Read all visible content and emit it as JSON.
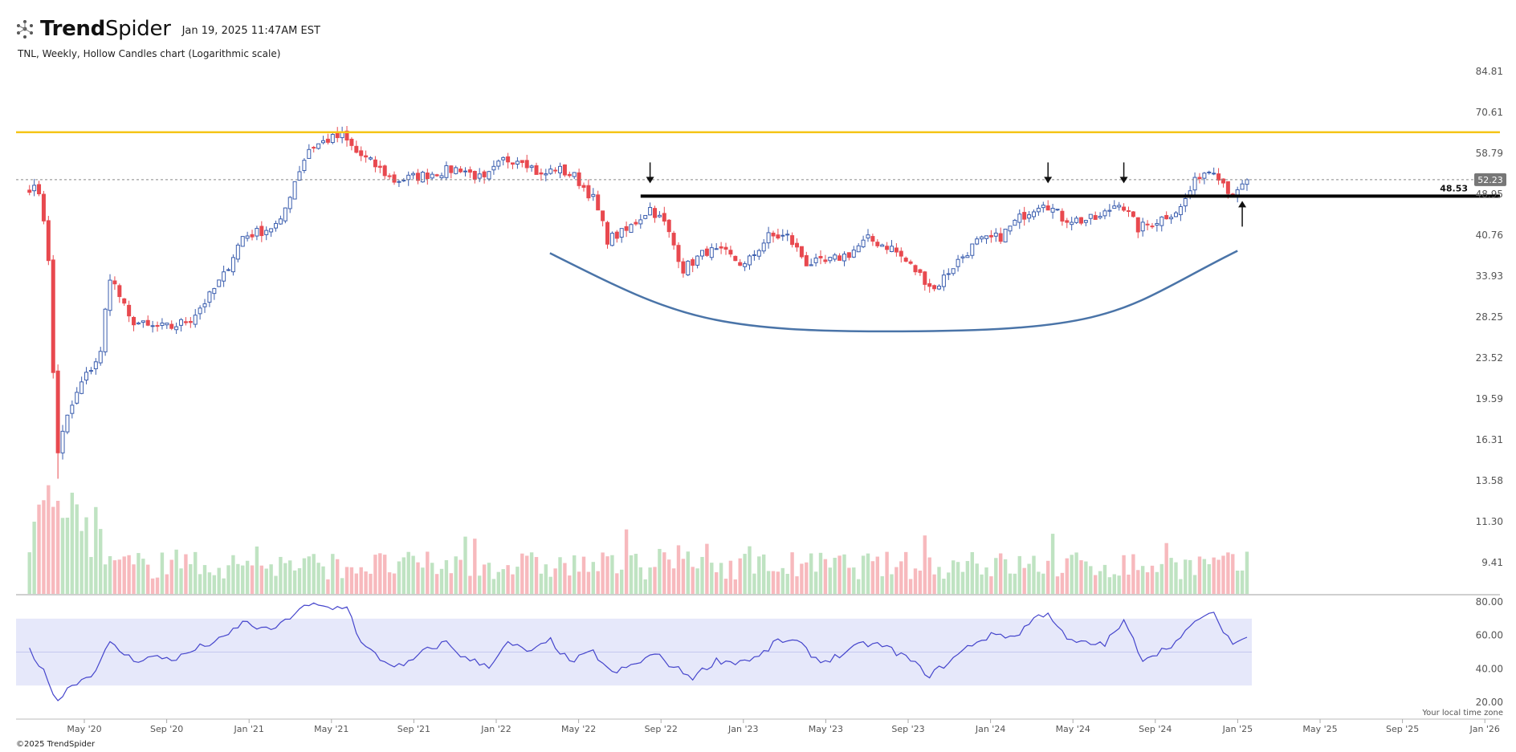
{
  "header": {
    "brand_bold": "Trend",
    "brand_light": "Spider",
    "timestamp": "Jan 19, 2025 11:47AM EST",
    "logo_icon": "trendspider-logo-icon"
  },
  "subtitle": "TNL, Weekly, Hollow Candles chart (Logarithmic scale)",
  "footer": {
    "copyright": "©2025 TrendSpider",
    "timezone_note": "Your local time zone"
  },
  "colors": {
    "bull": "#3a5dae",
    "bear": "#e8494f",
    "vol_bull": "#bfe3c2",
    "vol_bear": "#f7b9bd",
    "resistance": "#f5c518",
    "support": "#000000",
    "cup": "#4a74a8",
    "rsi_line": "#4545cc",
    "rsi_band": "#e6e8fa"
  },
  "chart_data": {
    "type": "candlestick",
    "symbol": "TNL",
    "interval": "Weekly",
    "scale": "log",
    "price_axis_ticks": [
      84.81,
      70.61,
      58.79,
      48.95,
      40.76,
      33.93,
      28.25,
      23.52,
      19.59,
      16.31,
      13.58,
      11.3,
      9.41
    ],
    "time_axis_ticks": [
      "May '20",
      "Sep '20",
      "Jan '21",
      "May '21",
      "Sep '21",
      "Jan '22",
      "May '22",
      "Sep '22",
      "Jan '23",
      "May '23",
      "Sep '23",
      "Jan '24",
      "May '24",
      "Sep '24",
      "Jan '25",
      "May '25",
      "Sep '25",
      "Jan '26"
    ],
    "last_price": 52.23,
    "horizontal_lines": [
      {
        "role": "resistance",
        "price": 64.6
      },
      {
        "role": "support",
        "price": 48.53,
        "label": "48.53"
      }
    ],
    "cup_curve": {
      "start": [
        "2022-03-20",
        37.6
      ],
      "bottom": [
        "2023-09-10",
        26.5
      ],
      "end": [
        "2024-12-30",
        38.0
      ]
    },
    "arrows": [
      {
        "date": "2022-08-15",
        "direction": "down"
      },
      {
        "date": "2024-03-25",
        "direction": "down"
      },
      {
        "date": "2024-07-15",
        "direction": "down"
      },
      {
        "date": "2025-01-06",
        "direction": "up"
      }
    ],
    "price_anchors": [
      [
        "2020-02-10",
        50.5
      ],
      [
        "2020-02-24",
        49.5
      ],
      [
        "2020-03-02",
        44
      ],
      [
        "2020-03-09",
        36
      ],
      [
        "2020-03-16",
        22
      ],
      [
        "2020-03-23",
        15.5
      ],
      [
        "2020-04-06",
        18
      ],
      [
        "2020-04-27",
        21
      ],
      [
        "2020-05-25",
        24
      ],
      [
        "2020-06-08",
        34
      ],
      [
        "2020-07-06",
        28
      ],
      [
        "2020-08-03",
        27
      ],
      [
        "2020-09-07",
        27
      ],
      [
        "2020-10-05",
        28
      ],
      [
        "2020-11-02",
        31
      ],
      [
        "2020-11-23",
        34
      ],
      [
        "2020-12-21",
        40.5
      ],
      [
        "2021-01-18",
        41.5
      ],
      [
        "2021-02-15",
        43
      ],
      [
        "2021-03-08",
        52
      ],
      [
        "2021-03-29",
        60
      ],
      [
        "2021-04-26",
        62.5
      ],
      [
        "2021-05-17",
        63.5
      ],
      [
        "2021-06-07",
        59
      ],
      [
        "2021-06-28",
        56.5
      ],
      [
        "2021-08-02",
        52
      ],
      [
        "2021-09-06",
        53
      ],
      [
        "2021-10-04",
        54
      ],
      [
        "2021-11-08",
        55
      ],
      [
        "2021-12-13",
        52
      ],
      [
        "2022-01-10",
        57
      ],
      [
        "2022-02-07",
        57.5
      ],
      [
        "2022-03-07",
        53
      ],
      [
        "2022-03-28",
        55
      ],
      [
        "2022-04-25",
        53
      ],
      [
        "2022-05-23",
        48
      ],
      [
        "2022-06-13",
        40
      ],
      [
        "2022-07-11",
        41.5
      ],
      [
        "2022-08-15",
        46
      ],
      [
        "2022-09-05",
        43
      ],
      [
        "2022-10-03",
        35
      ],
      [
        "2022-11-07",
        38
      ],
      [
        "2022-12-05",
        37.5
      ],
      [
        "2023-01-02",
        35.5
      ],
      [
        "2023-02-06",
        40.5
      ],
      [
        "2023-03-06",
        40.5
      ],
      [
        "2023-04-03",
        36
      ],
      [
        "2023-05-01",
        36
      ],
      [
        "2023-06-05",
        37.5
      ],
      [
        "2023-07-03",
        40
      ],
      [
        "2023-08-07",
        38.5
      ],
      [
        "2023-09-04",
        35.5
      ],
      [
        "2023-10-09",
        32
      ],
      [
        "2023-11-06",
        35.5
      ],
      [
        "2023-12-11",
        39.5
      ],
      [
        "2024-01-15",
        40.5
      ],
      [
        "2024-02-12",
        44
      ],
      [
        "2024-03-18",
        47.5
      ],
      [
        "2024-04-15",
        44
      ],
      [
        "2024-05-13",
        43.5
      ],
      [
        "2024-06-10",
        44
      ],
      [
        "2024-07-08",
        47.5
      ],
      [
        "2024-08-05",
        42
      ],
      [
        "2024-09-02",
        43.5
      ],
      [
        "2024-10-07",
        46
      ],
      [
        "2024-11-04",
        53.5
      ],
      [
        "2024-11-25",
        55
      ],
      [
        "2024-12-16",
        50
      ],
      [
        "2024-12-30",
        49
      ],
      [
        "2025-01-13",
        52.23
      ]
    ],
    "volume_bars": [],
    "rsi": {
      "ticks": [
        80.0,
        60.0,
        40.0,
        20.0
      ],
      "band": [
        30,
        70
      ],
      "midline": 50,
      "anchors": [
        [
          "2020-02-10",
          52
        ],
        [
          "2020-03-02",
          38
        ],
        [
          "2020-03-23",
          21
        ],
        [
          "2020-04-13",
          31
        ],
        [
          "2020-05-11",
          36
        ],
        [
          "2020-06-08",
          55
        ],
        [
          "2020-07-13",
          45
        ],
        [
          "2020-08-10",
          47
        ],
        [
          "2020-09-14",
          46
        ],
        [
          "2020-10-19",
          53
        ],
        [
          "2020-11-23",
          58
        ],
        [
          "2020-12-21",
          68
        ],
        [
          "2021-01-25",
          63
        ],
        [
          "2021-02-15",
          66
        ],
        [
          "2021-03-15",
          76
        ],
        [
          "2021-04-05",
          78
        ],
        [
          "2021-05-03",
          76
        ],
        [
          "2021-05-24",
          78
        ],
        [
          "2021-06-14",
          55
        ],
        [
          "2021-07-19",
          44
        ],
        [
          "2021-08-16",
          41
        ],
        [
          "2021-09-13",
          50
        ],
        [
          "2021-10-18",
          56
        ],
        [
          "2021-11-15",
          46
        ],
        [
          "2021-12-20",
          42
        ],
        [
          "2022-01-17",
          55
        ],
        [
          "2022-02-21",
          50
        ],
        [
          "2022-03-21",
          57
        ],
        [
          "2022-04-18",
          44
        ],
        [
          "2022-05-23",
          50
        ],
        [
          "2022-06-20",
          37
        ],
        [
          "2022-07-25",
          43
        ],
        [
          "2022-08-22",
          49
        ],
        [
          "2022-09-19",
          41
        ],
        [
          "2022-10-17",
          35
        ],
        [
          "2022-11-21",
          45
        ],
        [
          "2022-12-19",
          44
        ],
        [
          "2023-01-23",
          47
        ],
        [
          "2023-02-20",
          57
        ],
        [
          "2023-03-20",
          56
        ],
        [
          "2023-04-24",
          44
        ],
        [
          "2023-05-22",
          48
        ],
        [
          "2023-06-26",
          55
        ],
        [
          "2023-07-24",
          54
        ],
        [
          "2023-08-28",
          47
        ],
        [
          "2023-10-02",
          36
        ],
        [
          "2023-10-30",
          44
        ],
        [
          "2023-12-04",
          55
        ],
        [
          "2024-01-08",
          61
        ],
        [
          "2024-02-05",
          59
        ],
        [
          "2024-03-04",
          70
        ],
        [
          "2024-03-25",
          74
        ],
        [
          "2024-04-22",
          57
        ],
        [
          "2024-05-20",
          55
        ],
        [
          "2024-06-17",
          55
        ],
        [
          "2024-07-15",
          68
        ],
        [
          "2024-08-12",
          46
        ],
        [
          "2024-09-09",
          51
        ],
        [
          "2024-10-07",
          58
        ],
        [
          "2024-11-04",
          71
        ],
        [
          "2024-11-25",
          72
        ],
        [
          "2024-12-23",
          55
        ],
        [
          "2025-01-13",
          59
        ]
      ]
    }
  }
}
